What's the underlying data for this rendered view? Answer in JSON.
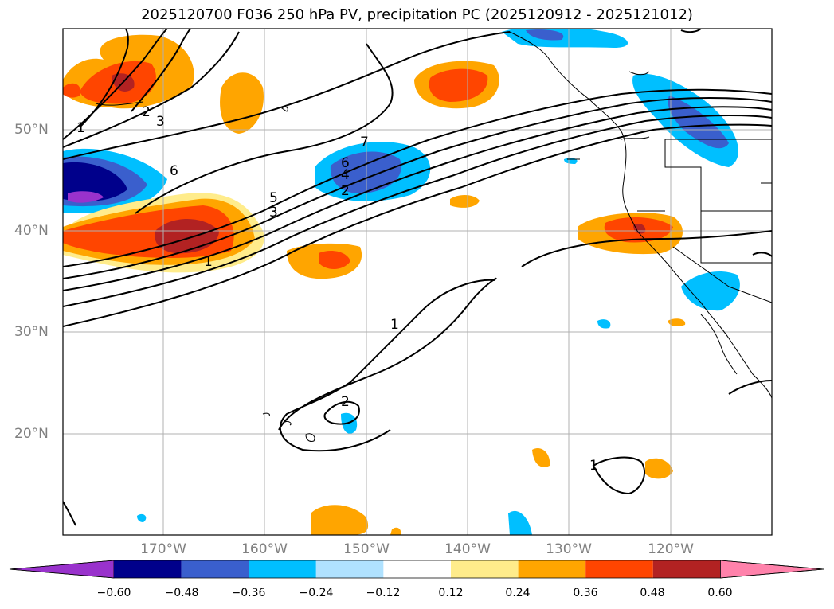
{
  "title": "2025120700 F036 250 hPa PV, precipitation PC (2025120912 - 2025121012)",
  "map": {
    "lat_labels": [
      "50°N",
      "40°N",
      "30°N",
      "20°N"
    ],
    "lon_labels": [
      "170°W",
      "160°W",
      "150°W",
      "140°W",
      "130°W",
      "120°W"
    ],
    "contour_labels": [
      "1",
      "2",
      "3",
      "4",
      "5",
      "6",
      "7",
      "6",
      "1",
      "2",
      "1",
      "2",
      "1",
      "3"
    ]
  },
  "colorbar": {
    "ticks": [
      "−0.60",
      "−0.48",
      "−0.36",
      "−0.24",
      "−0.12",
      "0.12",
      "0.24",
      "0.36",
      "0.48",
      "0.60"
    ],
    "colors": [
      "#9932cc",
      "#00008b",
      "#3a5fcd",
      "#00bfff",
      "#b0e2ff",
      "#ffffff",
      "#ffec8b",
      "#ffa500",
      "#ff4500",
      "#b22222",
      "#ff82ab"
    ]
  }
}
